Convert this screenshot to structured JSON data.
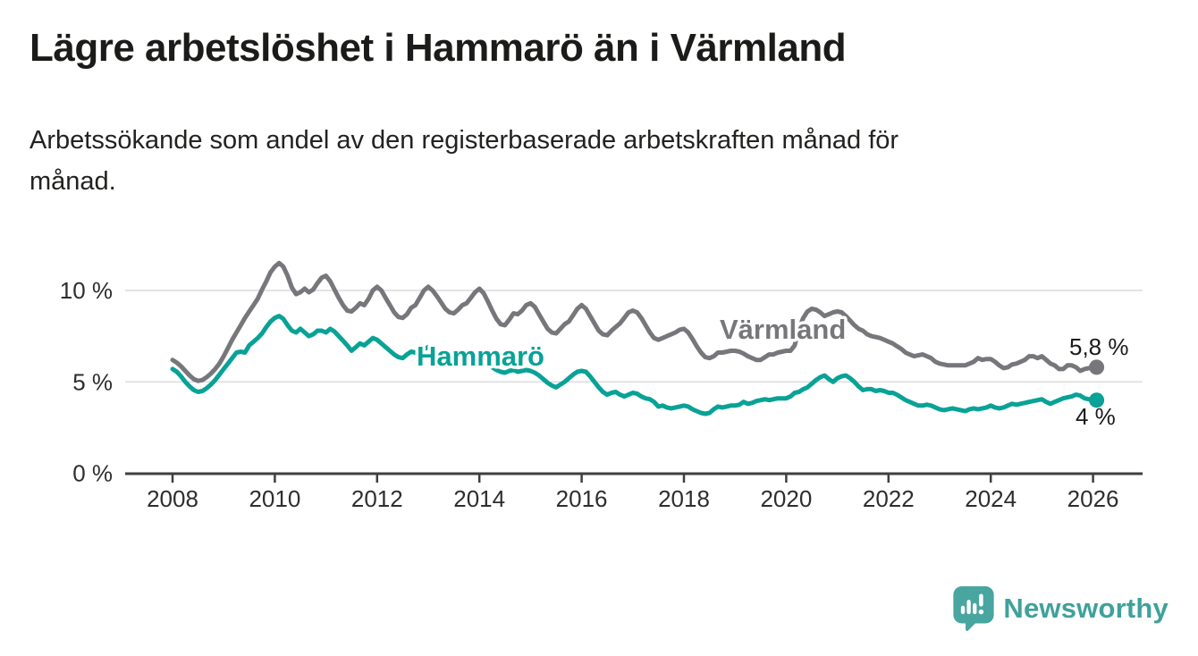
{
  "header": {
    "title": "Lägre arbetslöshet i Hammarö än i Värmland",
    "subtitle_lines": [
      "Arbetssökande som andel av den registerbaserade arbetskraften månad för",
      "månad."
    ]
  },
  "chart_data": {
    "type": "line",
    "title": "Lägre arbetslöshet i Hammarö än i Värmland",
    "subtitle": "Arbetssökande som andel av den registerbaserade arbetskraften månad för månad.",
    "unit": "%",
    "frequency": "monthly",
    "start": "2008-01",
    "end": "2026-01",
    "grid": true,
    "legend": "inline-labels",
    "x_axis": {
      "ticks": [
        {
          "year": 2008,
          "label": "2008"
        },
        {
          "year": 2010,
          "label": "2010"
        },
        {
          "year": 2012,
          "label": "2012"
        },
        {
          "year": 2014,
          "label": "2014"
        },
        {
          "year": 2016,
          "label": "2016"
        },
        {
          "year": 2018,
          "label": "2018"
        },
        {
          "year": 2020,
          "label": "2020"
        },
        {
          "year": 2022,
          "label": "2022"
        },
        {
          "year": 2024,
          "label": "2024"
        },
        {
          "year": 2026,
          "label": "2026"
        }
      ]
    },
    "y_axis": {
      "ticks": [
        {
          "value": 0,
          "label": "0 %"
        },
        {
          "value": 5,
          "label": "5 %"
        },
        {
          "value": 10,
          "label": "10 %"
        }
      ],
      "ylim": [
        0,
        12.2
      ]
    },
    "series": [
      {
        "name": "Värmland",
        "label_text": "Värmland",
        "end_label": "5,8 %",
        "end_value": 5.8,
        "color": "#77777b",
        "start_year": 2008,
        "interval_months": 1,
        "values": [
          6.2,
          6.05,
          5.85,
          5.6,
          5.35,
          5.15,
          5.05,
          5.1,
          5.25,
          5.45,
          5.7,
          6.0,
          6.4,
          6.85,
          7.3,
          7.7,
          8.1,
          8.5,
          8.85,
          9.2,
          9.55,
          10.05,
          10.5,
          11.0,
          11.3,
          11.5,
          11.3,
          10.8,
          10.15,
          9.8,
          9.9,
          10.1,
          9.9,
          10.05,
          10.4,
          10.7,
          10.8,
          10.5,
          10.05,
          9.6,
          9.2,
          8.9,
          8.85,
          9.05,
          9.3,
          9.2,
          9.55,
          10.0,
          10.2,
          10.0,
          9.6,
          9.2,
          8.8,
          8.55,
          8.5,
          8.7,
          9.05,
          9.2,
          9.6,
          10.0,
          10.2,
          10.0,
          9.7,
          9.35,
          9.0,
          8.8,
          8.75,
          8.95,
          9.2,
          9.3,
          9.6,
          9.9,
          10.1,
          9.85,
          9.4,
          8.9,
          8.45,
          8.15,
          8.1,
          8.4,
          8.75,
          8.7,
          8.9,
          9.2,
          9.3,
          9.1,
          8.7,
          8.3,
          7.9,
          7.7,
          7.65,
          7.9,
          8.15,
          8.3,
          8.65,
          9.0,
          9.2,
          9.0,
          8.6,
          8.2,
          7.8,
          7.6,
          7.55,
          7.8,
          8.0,
          8.2,
          8.5,
          8.8,
          8.9,
          8.8,
          8.5,
          8.1,
          7.7,
          7.4,
          7.3,
          7.4,
          7.5,
          7.6,
          7.7,
          7.85,
          7.9,
          7.7,
          7.35,
          6.95,
          6.6,
          6.35,
          6.3,
          6.4,
          6.6,
          6.6,
          6.65,
          6.7,
          6.7,
          6.65,
          6.55,
          6.4,
          6.3,
          6.2,
          6.2,
          6.35,
          6.5,
          6.5,
          6.6,
          6.65,
          6.7,
          6.7,
          7.0,
          7.9,
          8.5,
          8.85,
          9.0,
          8.95,
          8.8,
          8.6,
          8.7,
          8.8,
          8.85,
          8.8,
          8.6,
          8.35,
          8.1,
          7.9,
          7.8,
          7.6,
          7.5,
          7.45,
          7.4,
          7.3,
          7.2,
          7.1,
          6.95,
          6.8,
          6.6,
          6.5,
          6.4,
          6.45,
          6.5,
          6.4,
          6.3,
          6.1,
          6.0,
          5.95,
          5.9,
          5.9,
          5.9,
          5.9,
          5.9,
          6.0,
          6.1,
          6.3,
          6.2,
          6.25,
          6.25,
          6.1,
          5.9,
          5.75,
          5.8,
          5.95,
          6.0,
          6.1,
          6.2,
          6.4,
          6.4,
          6.3,
          6.4,
          6.2,
          6.0,
          5.9,
          5.7,
          5.7,
          5.9,
          5.9,
          5.8,
          5.6,
          5.7,
          5.75,
          5.8
        ]
      },
      {
        "name": "Hammarö",
        "label_text": "Hammarö",
        "end_label": "4 %",
        "end_value": 4.0,
        "color": "#09a296",
        "start_year": 2008,
        "interval_months": 1,
        "values": [
          5.7,
          5.55,
          5.3,
          5.0,
          4.75,
          4.55,
          4.45,
          4.5,
          4.65,
          4.85,
          5.1,
          5.4,
          5.7,
          6.0,
          6.3,
          6.6,
          6.65,
          6.6,
          7.0,
          7.2,
          7.4,
          7.65,
          8.0,
          8.3,
          8.5,
          8.6,
          8.45,
          8.1,
          7.8,
          7.7,
          7.9,
          7.7,
          7.5,
          7.6,
          7.8,
          7.8,
          7.7,
          7.9,
          7.75,
          7.5,
          7.25,
          7.0,
          6.7,
          6.9,
          7.1,
          7.0,
          7.2,
          7.4,
          7.3,
          7.1,
          6.9,
          6.7,
          6.5,
          6.35,
          6.3,
          6.5,
          6.65,
          6.6,
          6.7,
          6.8,
          6.9,
          6.8,
          6.6,
          6.5,
          6.35,
          6.25,
          6.2,
          6.3,
          6.4,
          6.35,
          6.4,
          6.4,
          6.3,
          6.15,
          6.0,
          5.8,
          5.65,
          5.55,
          5.5,
          5.6,
          5.65,
          5.55,
          5.6,
          5.65,
          5.6,
          5.5,
          5.35,
          5.15,
          4.95,
          4.8,
          4.7,
          4.85,
          5.0,
          5.2,
          5.4,
          5.55,
          5.6,
          5.55,
          5.3,
          5.0,
          4.7,
          4.45,
          4.3,
          4.4,
          4.45,
          4.3,
          4.2,
          4.3,
          4.4,
          4.35,
          4.2,
          4.1,
          4.05,
          3.9,
          3.65,
          3.7,
          3.6,
          3.55,
          3.6,
          3.65,
          3.7,
          3.65,
          3.5,
          3.4,
          3.3,
          3.25,
          3.3,
          3.5,
          3.65,
          3.6,
          3.65,
          3.7,
          3.7,
          3.75,
          3.9,
          3.8,
          3.85,
          3.95,
          4.0,
          4.05,
          4.0,
          4.05,
          4.1,
          4.1,
          4.1,
          4.2,
          4.4,
          4.45,
          4.6,
          4.7,
          4.9,
          5.1,
          5.25,
          5.35,
          5.15,
          5.0,
          5.2,
          5.3,
          5.35,
          5.2,
          5.0,
          4.75,
          4.55,
          4.6,
          4.6,
          4.5,
          4.55,
          4.5,
          4.4,
          4.4,
          4.3,
          4.15,
          4.0,
          3.9,
          3.8,
          3.7,
          3.7,
          3.75,
          3.7,
          3.6,
          3.5,
          3.45,
          3.5,
          3.55,
          3.5,
          3.45,
          3.4,
          3.5,
          3.55,
          3.5,
          3.55,
          3.6,
          3.7,
          3.6,
          3.55,
          3.6,
          3.7,
          3.8,
          3.75,
          3.8,
          3.85,
          3.9,
          3.95,
          4.0,
          4.05,
          3.9,
          3.8,
          3.9,
          4.0,
          4.1,
          4.15,
          4.2,
          4.3,
          4.25,
          4.1,
          4.05,
          4.0
        ]
      }
    ],
    "colors": {
      "varmland": "#77777b",
      "hammaro": "#09a296",
      "grid": "#dcdcdc",
      "axis": "#3f3f3f",
      "tick_text": "#2e2e2e",
      "annotation_text": "#1a1a1a"
    }
  },
  "footer": {
    "brand": "Newsworthy",
    "logo_icon": "newsworthy-speech-bubble-bar-chart-icon",
    "brand_color": "#3fa19b",
    "logo_fill": "#48a5a0"
  }
}
